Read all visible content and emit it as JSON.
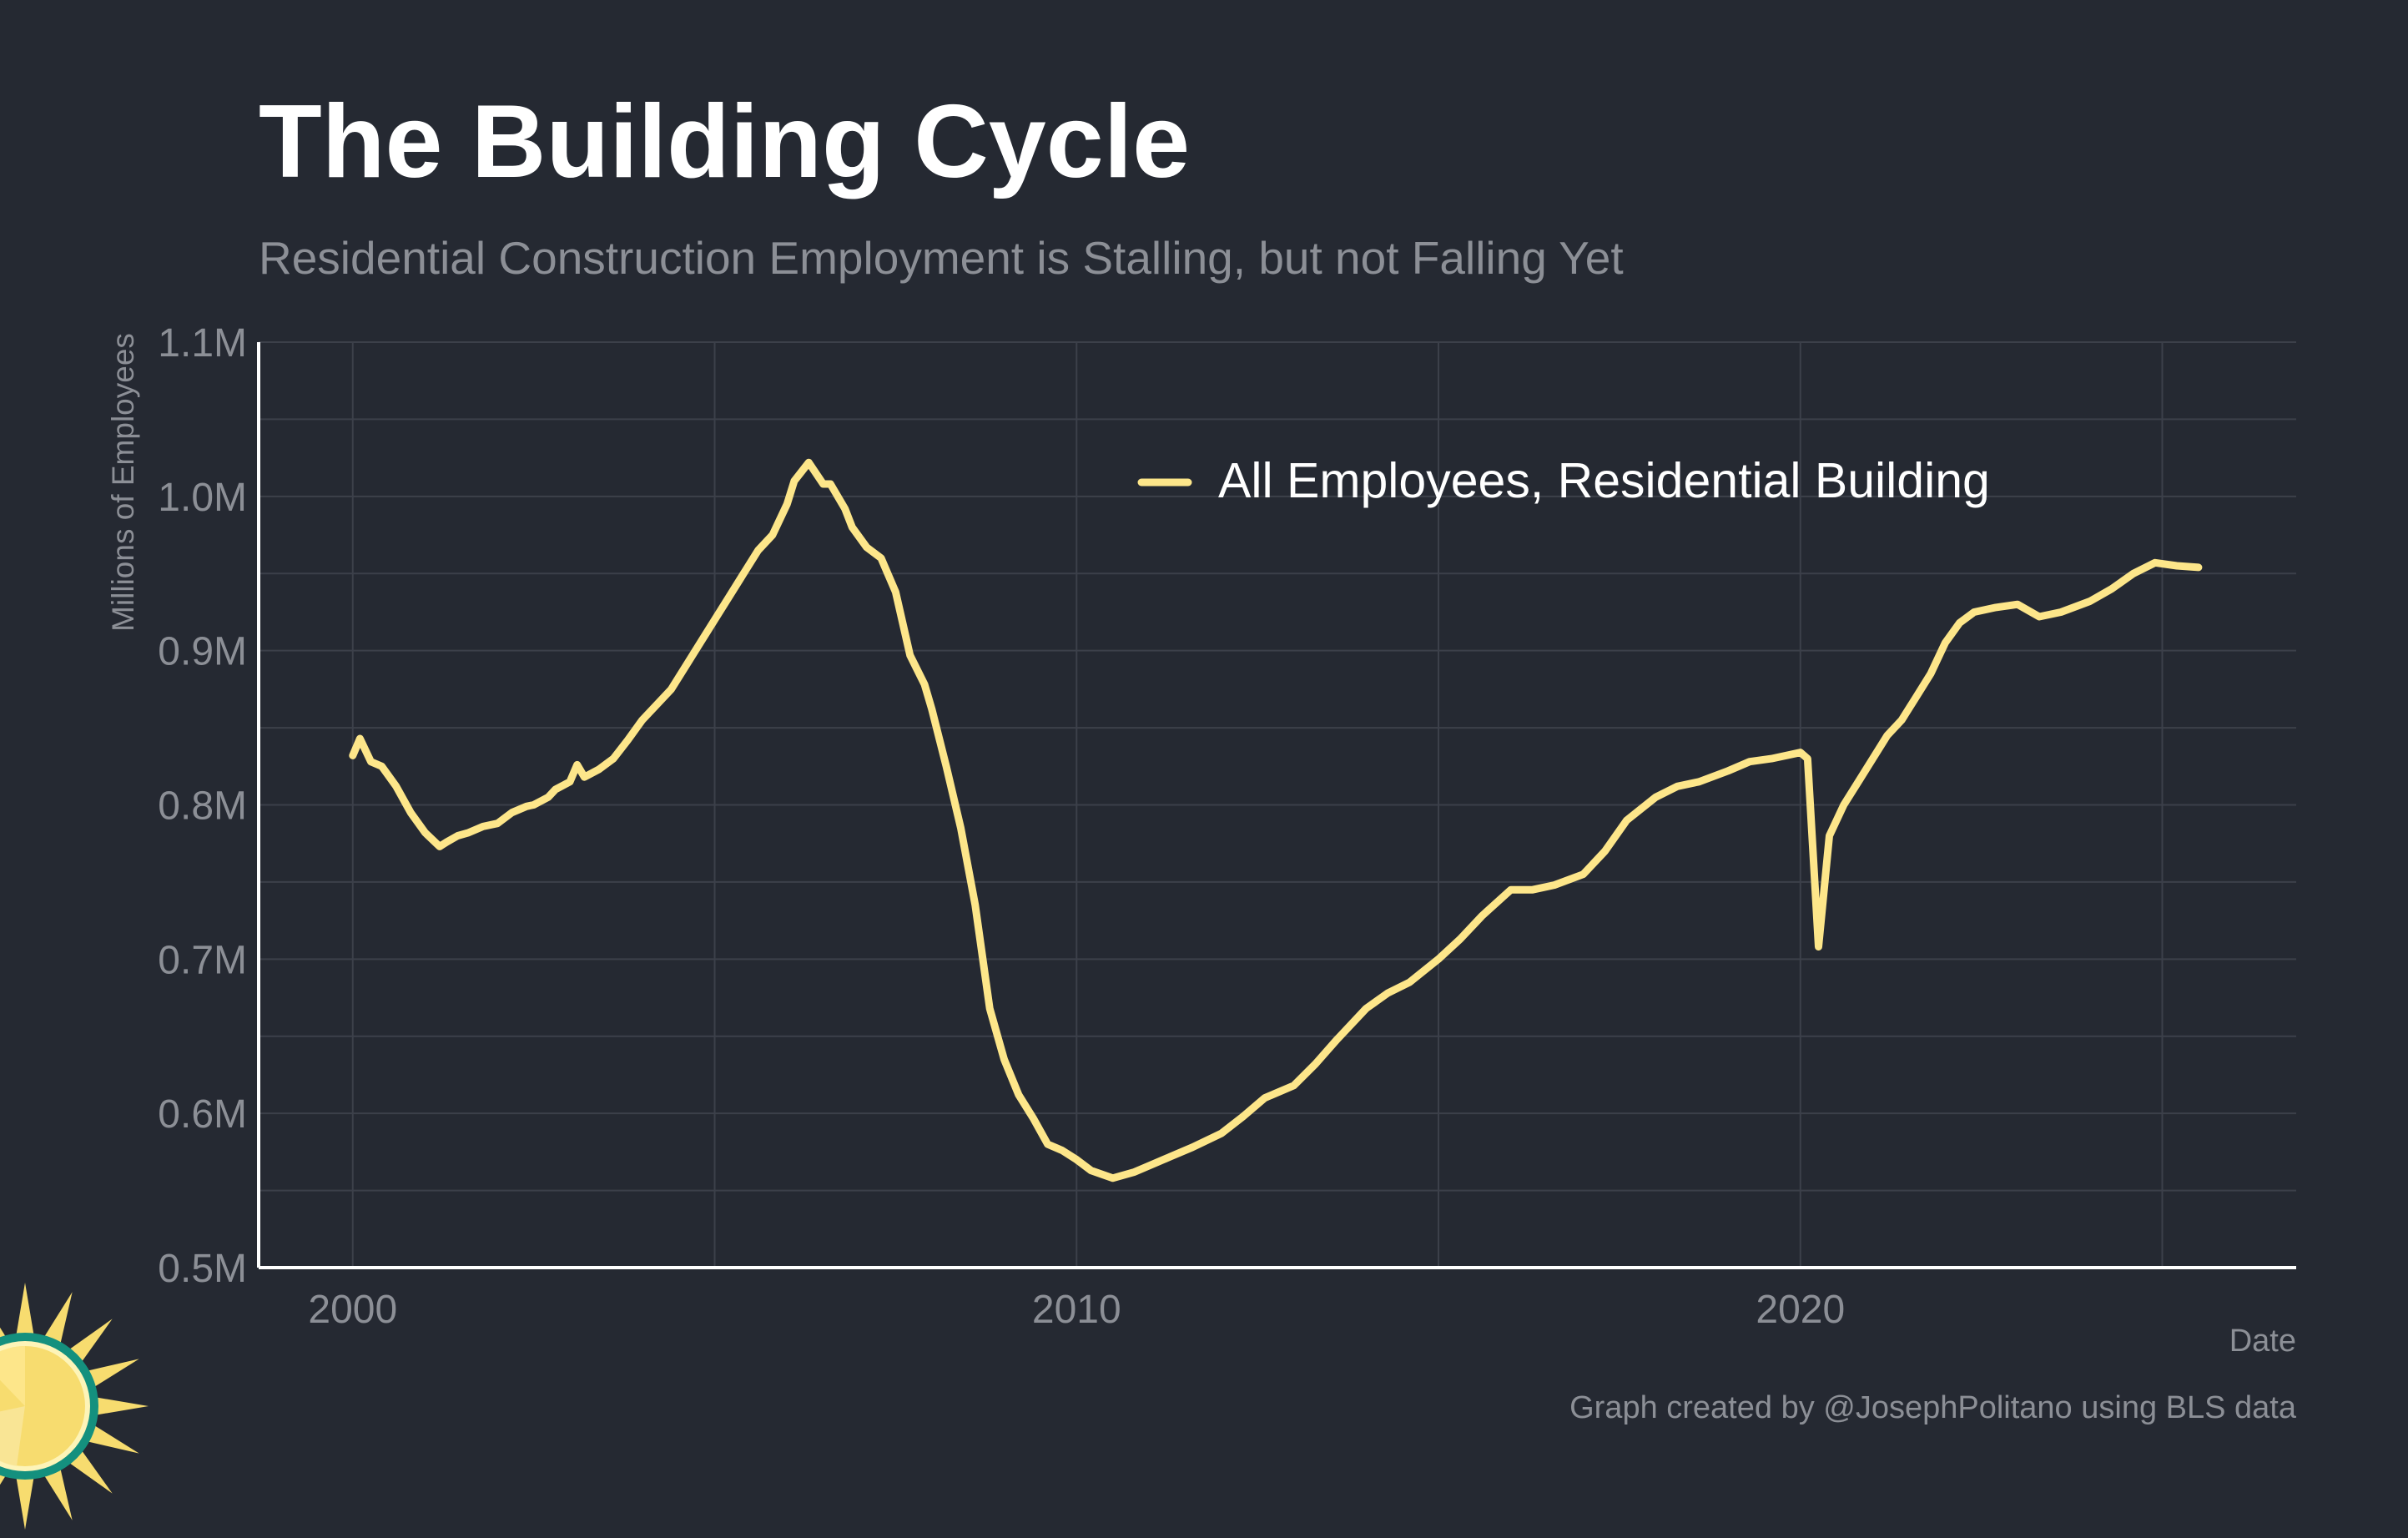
{
  "header": {
    "title": "The Building Cycle",
    "subtitle": "Residential Construction Employment is Stalling, but not Falling Yet"
  },
  "footer": {
    "credit": "Graph created by @JosephPolitano using BLS data"
  },
  "colors": {
    "background": "#252932",
    "series": "#fde68a",
    "grid": "#3c404a",
    "axis": "#ffffff",
    "muted_text": "#8c8f96"
  },
  "logo": {
    "icon": "sun-logo-icon"
  },
  "chart_data": {
    "type": "line",
    "title": "The Building Cycle",
    "subtitle": "Residential Construction Employment is Stalling, but not Falling Yet",
    "xlabel": "Date",
    "ylabel": "Millions of Employees",
    "xlim": [
      1998.7,
      2026.85
    ],
    "ylim": [
      0.5,
      1.1
    ],
    "x_ticks": [
      2000,
      2010,
      2020
    ],
    "x_tick_labels": [
      "2000",
      "2010",
      "2020"
    ],
    "x_minor_ticks": [
      2005,
      2015,
      2025
    ],
    "y_ticks": [
      0.5,
      0.6,
      0.7,
      0.8,
      0.9,
      1.0,
      1.1
    ],
    "y_tick_labels": [
      "0.5M",
      "0.6M",
      "0.7M",
      "0.8M",
      "0.9M",
      "1.0M",
      "1.1M"
    ],
    "y_minor_ticks": [
      0.55,
      0.65,
      0.75,
      0.85,
      0.95,
      1.05
    ],
    "grid": true,
    "legend": {
      "position": "top-right",
      "entries": [
        "All Employees, Residential Building"
      ]
    },
    "series": [
      {
        "name": "All Employees, Residential Building",
        "color": "#fde68a",
        "x": [
          2000.0,
          2000.1,
          2000.25,
          2000.4,
          2000.6,
          2000.8,
          2001.0,
          2001.2,
          2001.3,
          2001.45,
          2001.6,
          2001.8,
          2002.0,
          2002.2,
          2002.4,
          2002.5,
          2002.7,
          2002.8,
          2003.0,
          2003.1,
          2003.2,
          2003.4,
          2003.6,
          2003.8,
          2004.0,
          2004.2,
          2004.4,
          2004.6,
          2004.8,
          2005.0,
          2005.2,
          2005.4,
          2005.6,
          2005.8,
          2006.0,
          2006.1,
          2006.3,
          2006.5,
          2006.6,
          2006.8,
          2006.9,
          2007.1,
          2007.3,
          2007.5,
          2007.7,
          2007.9,
          2008.0,
          2008.2,
          2008.4,
          2008.6,
          2008.8,
          2009.0,
          2009.2,
          2009.4,
          2009.6,
          2009.8,
          2010.0,
          2010.2,
          2010.5,
          2010.8,
          2011.0,
          2011.3,
          2011.6,
          2012.0,
          2012.3,
          2012.6,
          2013.0,
          2013.3,
          2013.6,
          2014.0,
          2014.3,
          2014.6,
          2015.0,
          2015.3,
          2015.6,
          2016.0,
          2016.3,
          2016.6,
          2017.0,
          2017.3,
          2017.6,
          2018.0,
          2018.3,
          2018.6,
          2019.0,
          2019.3,
          2019.6,
          2020.0,
          2020.1,
          2020.25,
          2020.4,
          2020.6,
          2020.8,
          2021.0,
          2021.2,
          2021.4,
          2021.6,
          2021.8,
          2022.0,
          2022.2,
          2022.4,
          2022.7,
          2023.0,
          2023.3,
          2023.6,
          2024.0,
          2024.3,
          2024.6,
          2024.9,
          2025.2,
          2025.5
        ],
        "y": [
          0.832,
          0.843,
          0.828,
          0.825,
          0.812,
          0.795,
          0.782,
          0.773,
          0.776,
          0.78,
          0.782,
          0.786,
          0.788,
          0.795,
          0.799,
          0.8,
          0.805,
          0.81,
          0.815,
          0.826,
          0.818,
          0.823,
          0.83,
          0.842,
          0.855,
          0.865,
          0.875,
          0.89,
          0.905,
          0.92,
          0.935,
          0.95,
          0.965,
          0.975,
          0.995,
          1.01,
          1.022,
          1.008,
          1.008,
          0.992,
          0.98,
          0.967,
          0.96,
          0.938,
          0.897,
          0.878,
          0.862,
          0.825,
          0.785,
          0.735,
          0.668,
          0.635,
          0.612,
          0.597,
          0.58,
          0.576,
          0.57,
          0.563,
          0.558,
          0.562,
          0.566,
          0.572,
          0.578,
          0.587,
          0.598,
          0.61,
          0.618,
          0.632,
          0.648,
          0.668,
          0.678,
          0.685,
          0.7,
          0.713,
          0.728,
          0.745,
          0.745,
          0.748,
          0.755,
          0.77,
          0.79,
          0.805,
          0.812,
          0.815,
          0.822,
          0.828,
          0.83,
          0.834,
          0.83,
          0.708,
          0.78,
          0.8,
          0.815,
          0.83,
          0.845,
          0.855,
          0.87,
          0.885,
          0.905,
          0.918,
          0.925,
          0.928,
          0.93,
          0.922,
          0.925,
          0.932,
          0.94,
          0.95,
          0.957,
          0.955,
          0.954
        ]
      }
    ]
  }
}
